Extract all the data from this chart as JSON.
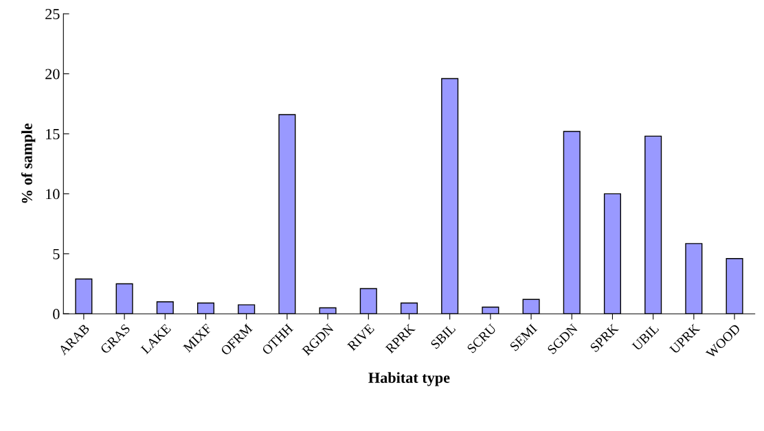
{
  "chart_data": {
    "type": "bar",
    "xlabel": "Habitat type",
    "ylabel": "% of sample",
    "categories": [
      "ARAB",
      "GRAS",
      "LAKE",
      "MIXF",
      "OFRM",
      "OTHH",
      "RGDN",
      "RIVE",
      "RPRK",
      "SBIL",
      "SCRU",
      "SEMI",
      "SGDN",
      "SPRK",
      "UBIL",
      "UPRK",
      "WOOD"
    ],
    "values": [
      2.9,
      2.5,
      1.0,
      0.9,
      0.75,
      16.6,
      0.5,
      2.1,
      0.9,
      19.6,
      0.55,
      1.2,
      15.2,
      10.0,
      14.8,
      5.85,
      4.6
    ],
    "color": "#9999ff",
    "ylim": [
      0,
      25
    ],
    "yticks": [
      0,
      5,
      10,
      15,
      20,
      25
    ],
    "grid": false,
    "legend": false
  }
}
